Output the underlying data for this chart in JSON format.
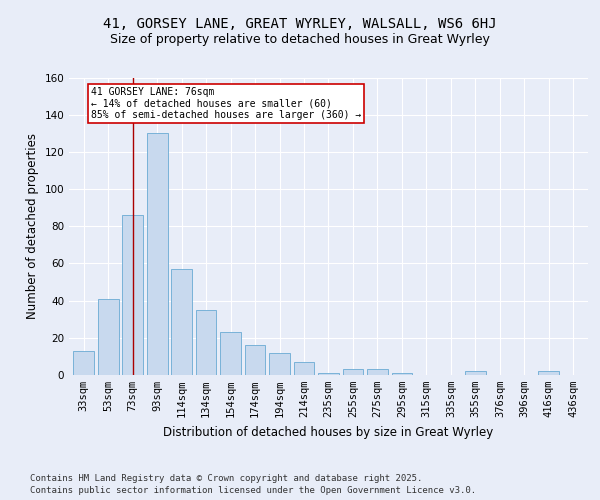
{
  "title1": "41, GORSEY LANE, GREAT WYRLEY, WALSALL, WS6 6HJ",
  "title2": "Size of property relative to detached houses in Great Wyrley",
  "xlabel": "Distribution of detached houses by size in Great Wyrley",
  "ylabel": "Number of detached properties",
  "categories": [
    "33sqm",
    "53sqm",
    "73sqm",
    "93sqm",
    "114sqm",
    "134sqm",
    "154sqm",
    "174sqm",
    "194sqm",
    "214sqm",
    "235sqm",
    "255sqm",
    "275sqm",
    "295sqm",
    "315sqm",
    "335sqm",
    "355sqm",
    "376sqm",
    "396sqm",
    "416sqm",
    "436sqm"
  ],
  "values": [
    13,
    41,
    86,
    130,
    57,
    35,
    23,
    16,
    12,
    7,
    1,
    3,
    3,
    1,
    0,
    0,
    2,
    0,
    0,
    2,
    0
  ],
  "bar_color": "#c8d9ee",
  "bar_edge_color": "#6aaad4",
  "vline_x": 2,
  "vline_color": "#aa0000",
  "annotation_text": "41 GORSEY LANE: 76sqm\n← 14% of detached houses are smaller (60)\n85% of semi-detached houses are larger (360) →",
  "annotation_box_edge": "#cc0000",
  "ylim": [
    0,
    160
  ],
  "yticks": [
    0,
    20,
    40,
    60,
    80,
    100,
    120,
    140,
    160
  ],
  "footer": "Contains HM Land Registry data © Crown copyright and database right 2025.\nContains public sector information licensed under the Open Government Licence v3.0.",
  "bg_color": "#e8edf8",
  "plot_bg_color": "#e8edf8",
  "title1_fontsize": 10,
  "title2_fontsize": 9,
  "xlabel_fontsize": 8.5,
  "ylabel_fontsize": 8.5,
  "footer_fontsize": 6.5,
  "tick_fontsize": 7.5
}
